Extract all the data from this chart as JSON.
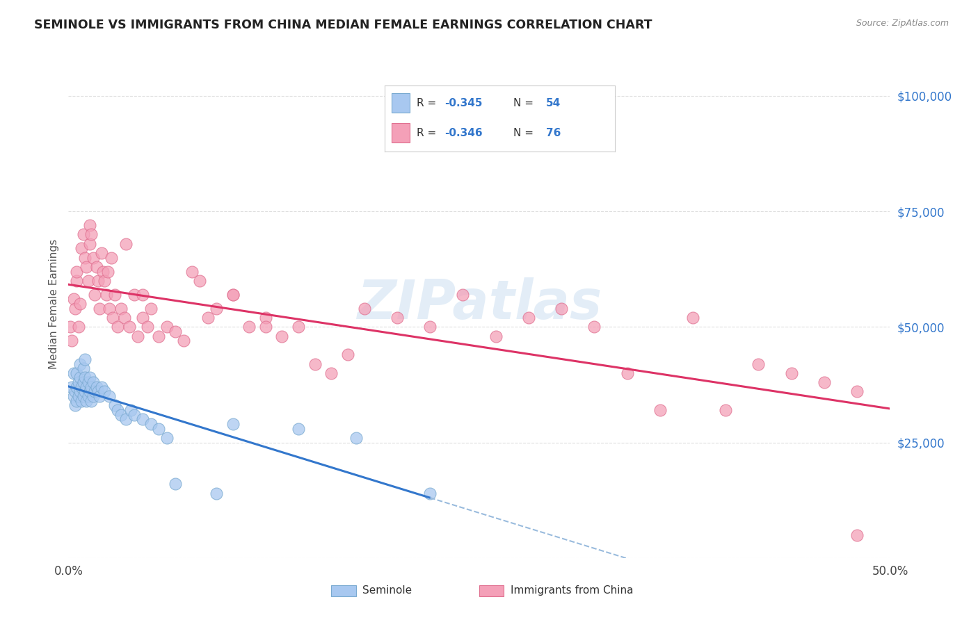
{
  "title": "SEMINOLE VS IMMIGRANTS FROM CHINA MEDIAN FEMALE EARNINGS CORRELATION CHART",
  "source": "Source: ZipAtlas.com",
  "ylabel": "Median Female Earnings",
  "xlim": [
    0.0,
    0.5
  ],
  "ylim": [
    0,
    110000
  ],
  "yticks": [
    0,
    25000,
    50000,
    75000,
    100000
  ],
  "ytick_labels": [
    "",
    "$25,000",
    "$50,000",
    "$75,000",
    "$100,000"
  ],
  "xticks": [
    0.0,
    0.1,
    0.2,
    0.3,
    0.4,
    0.5
  ],
  "xtick_labels": [
    "0.0%",
    "",
    "",
    "",
    "",
    "50.0%"
  ],
  "background_color": "#ffffff",
  "grid_color": "#dddddd",
  "seminole_color": "#a8c8f0",
  "china_color": "#f4a0b8",
  "seminole_edge": "#7aaad0",
  "china_edge": "#e07090",
  "trend_seminole_color": "#3377cc",
  "trend_china_color": "#dd3366",
  "trend_ext_color": "#99bbdd",
  "watermark": "ZIPatlas",
  "seminole_x": [
    0.002,
    0.003,
    0.003,
    0.004,
    0.004,
    0.005,
    0.005,
    0.005,
    0.006,
    0.006,
    0.007,
    0.007,
    0.007,
    0.008,
    0.008,
    0.009,
    0.009,
    0.009,
    0.01,
    0.01,
    0.01,
    0.011,
    0.011,
    0.012,
    0.012,
    0.013,
    0.013,
    0.014,
    0.014,
    0.015,
    0.015,
    0.016,
    0.017,
    0.018,
    0.019,
    0.02,
    0.022,
    0.025,
    0.028,
    0.03,
    0.032,
    0.035,
    0.038,
    0.04,
    0.045,
    0.05,
    0.055,
    0.06,
    0.065,
    0.09,
    0.1,
    0.14,
    0.175,
    0.22
  ],
  "seminole_y": [
    37000,
    35000,
    40000,
    33000,
    36000,
    34000,
    37000,
    40000,
    35000,
    38000,
    36000,
    39000,
    42000,
    34000,
    37000,
    35000,
    38000,
    41000,
    36000,
    39000,
    43000,
    34000,
    37000,
    35000,
    38000,
    36000,
    39000,
    34000,
    37000,
    35000,
    38000,
    36000,
    37000,
    36000,
    35000,
    37000,
    36000,
    35000,
    33000,
    32000,
    31000,
    30000,
    32000,
    31000,
    30000,
    29000,
    28000,
    26000,
    16000,
    14000,
    29000,
    28000,
    26000,
    14000
  ],
  "china_x": [
    0.001,
    0.002,
    0.003,
    0.004,
    0.005,
    0.005,
    0.006,
    0.007,
    0.008,
    0.009,
    0.01,
    0.011,
    0.012,
    0.013,
    0.013,
    0.014,
    0.015,
    0.016,
    0.017,
    0.018,
    0.019,
    0.02,
    0.021,
    0.022,
    0.023,
    0.024,
    0.025,
    0.026,
    0.027,
    0.028,
    0.03,
    0.032,
    0.034,
    0.035,
    0.037,
    0.04,
    0.042,
    0.045,
    0.048,
    0.05,
    0.055,
    0.06,
    0.065,
    0.07,
    0.075,
    0.08,
    0.085,
    0.09,
    0.1,
    0.11,
    0.12,
    0.13,
    0.14,
    0.15,
    0.16,
    0.17,
    0.18,
    0.2,
    0.22,
    0.24,
    0.26,
    0.28,
    0.3,
    0.32,
    0.34,
    0.36,
    0.38,
    0.4,
    0.42,
    0.44,
    0.46,
    0.48,
    0.1,
    0.12,
    0.045,
    0.48
  ],
  "china_y": [
    50000,
    47000,
    56000,
    54000,
    60000,
    62000,
    50000,
    55000,
    67000,
    70000,
    65000,
    63000,
    60000,
    68000,
    72000,
    70000,
    65000,
    57000,
    63000,
    60000,
    54000,
    66000,
    62000,
    60000,
    57000,
    62000,
    54000,
    65000,
    52000,
    57000,
    50000,
    54000,
    52000,
    68000,
    50000,
    57000,
    48000,
    52000,
    50000,
    54000,
    48000,
    50000,
    49000,
    47000,
    62000,
    60000,
    52000,
    54000,
    57000,
    50000,
    52000,
    48000,
    50000,
    42000,
    40000,
    44000,
    54000,
    52000,
    50000,
    57000,
    48000,
    52000,
    54000,
    50000,
    40000,
    32000,
    52000,
    32000,
    42000,
    40000,
    38000,
    36000,
    57000,
    50000,
    57000,
    5000
  ]
}
